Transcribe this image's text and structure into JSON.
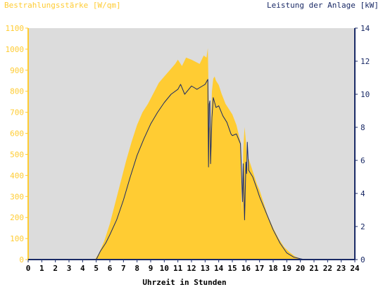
{
  "chart_data": {
    "type": "area",
    "left_title": "Bestrahlungsstärke [W/qm]",
    "right_title": "Leistung der Anlage [kW]",
    "xlabel": "Uhrzeit in Stunden",
    "x_ticks": [
      "0",
      "1",
      "2",
      "3",
      "4",
      "5",
      "6",
      "7",
      "8",
      "9",
      "10",
      "11",
      "12",
      "13",
      "14",
      "15",
      "16",
      "17",
      "18",
      "19",
      "20",
      "21",
      "22",
      "23",
      "24"
    ],
    "y_left_ticks": [
      "0",
      "100",
      "200",
      "300",
      "400",
      "500",
      "600",
      "700",
      "800",
      "900",
      "1000",
      "1100"
    ],
    "y_right_ticks": [
      "0",
      "2",
      "4",
      "6",
      "8",
      "10",
      "12",
      "14"
    ],
    "xlim": [
      0,
      24
    ],
    "y_left_lim": [
      0,
      1100
    ],
    "y_right_lim": [
      0,
      14
    ],
    "grid": false,
    "colors": {
      "irradiance": "#ffcc33",
      "power": "#1a2a66",
      "plot_bg": "#dcdcdc",
      "left_axis": "#ffcc33",
      "right_axis": "#1a2a66"
    },
    "series": [
      {
        "axis": "left",
        "style": "filled-area",
        "x": [
          0,
          4.9,
          5.2,
          5.6,
          6.0,
          6.4,
          6.8,
          7.2,
          7.6,
          8.0,
          8.4,
          8.8,
          9.2,
          9.6,
          10.0,
          10.4,
          10.8,
          11.0,
          11.3,
          11.6,
          12.0,
          12.3,
          12.6,
          12.9,
          13.1,
          13.2,
          13.3,
          13.4,
          13.5,
          13.6,
          13.7,
          13.8,
          14.0,
          14.2,
          14.5,
          14.8,
          15.0,
          15.3,
          15.6,
          15.7,
          15.8,
          15.9,
          16.0,
          16.1,
          16.2,
          16.5,
          16.8,
          17.0,
          17.3,
          17.6,
          18.0,
          18.4,
          18.8,
          19.2,
          19.6,
          20.0,
          20.3,
          20.6,
          24
        ],
        "values": [
          0,
          0,
          30,
          90,
          170,
          270,
          370,
          470,
          560,
          640,
          700,
          740,
          790,
          840,
          870,
          900,
          930,
          950,
          920,
          960,
          950,
          940,
          930,
          970,
          960,
          1005,
          640,
          600,
          800,
          860,
          870,
          850,
          830,
          790,
          740,
          710,
          690,
          640,
          560,
          220,
          520,
          630,
          560,
          430,
          480,
          420,
          360,
          330,
          270,
          210,
          150,
          100,
          60,
          35,
          15,
          5,
          0,
          0,
          0
        ],
        "unit": "W/qm"
      },
      {
        "axis": "right",
        "style": "line",
        "x": [
          0,
          5.0,
          5.3,
          5.7,
          6.0,
          6.5,
          7.0,
          7.5,
          8.0,
          8.5,
          9.0,
          9.5,
          10.0,
          10.5,
          11.0,
          11.2,
          11.5,
          12.0,
          12.4,
          12.8,
          13.0,
          13.2,
          13.25,
          13.3,
          13.35,
          13.4,
          13.5,
          13.6,
          13.8,
          14.0,
          14.3,
          14.6,
          14.9,
          15.0,
          15.3,
          15.6,
          15.75,
          15.8,
          15.9,
          16.0,
          16.05,
          16.1,
          16.2,
          16.5,
          16.8,
          17.0,
          17.5,
          18.0,
          18.5,
          19.0,
          19.5,
          20.0,
          20.3,
          24
        ],
        "values": [
          0,
          0,
          0.5,
          1.0,
          1.5,
          2.4,
          3.6,
          5.0,
          6.3,
          7.3,
          8.2,
          8.9,
          9.5,
          10.0,
          10.3,
          10.6,
          10.0,
          10.5,
          10.3,
          10.5,
          10.6,
          10.9,
          5.6,
          9.4,
          9.6,
          5.8,
          8.6,
          9.8,
          9.2,
          9.3,
          8.7,
          8.3,
          7.6,
          7.5,
          7.6,
          7.0,
          3.5,
          5.8,
          2.4,
          5.9,
          5.2,
          7.1,
          5.4,
          5.0,
          4.3,
          3.8,
          2.8,
          1.8,
          1.0,
          0.4,
          0.15,
          0.05,
          0,
          0
        ],
        "unit": "kW"
      }
    ]
  }
}
